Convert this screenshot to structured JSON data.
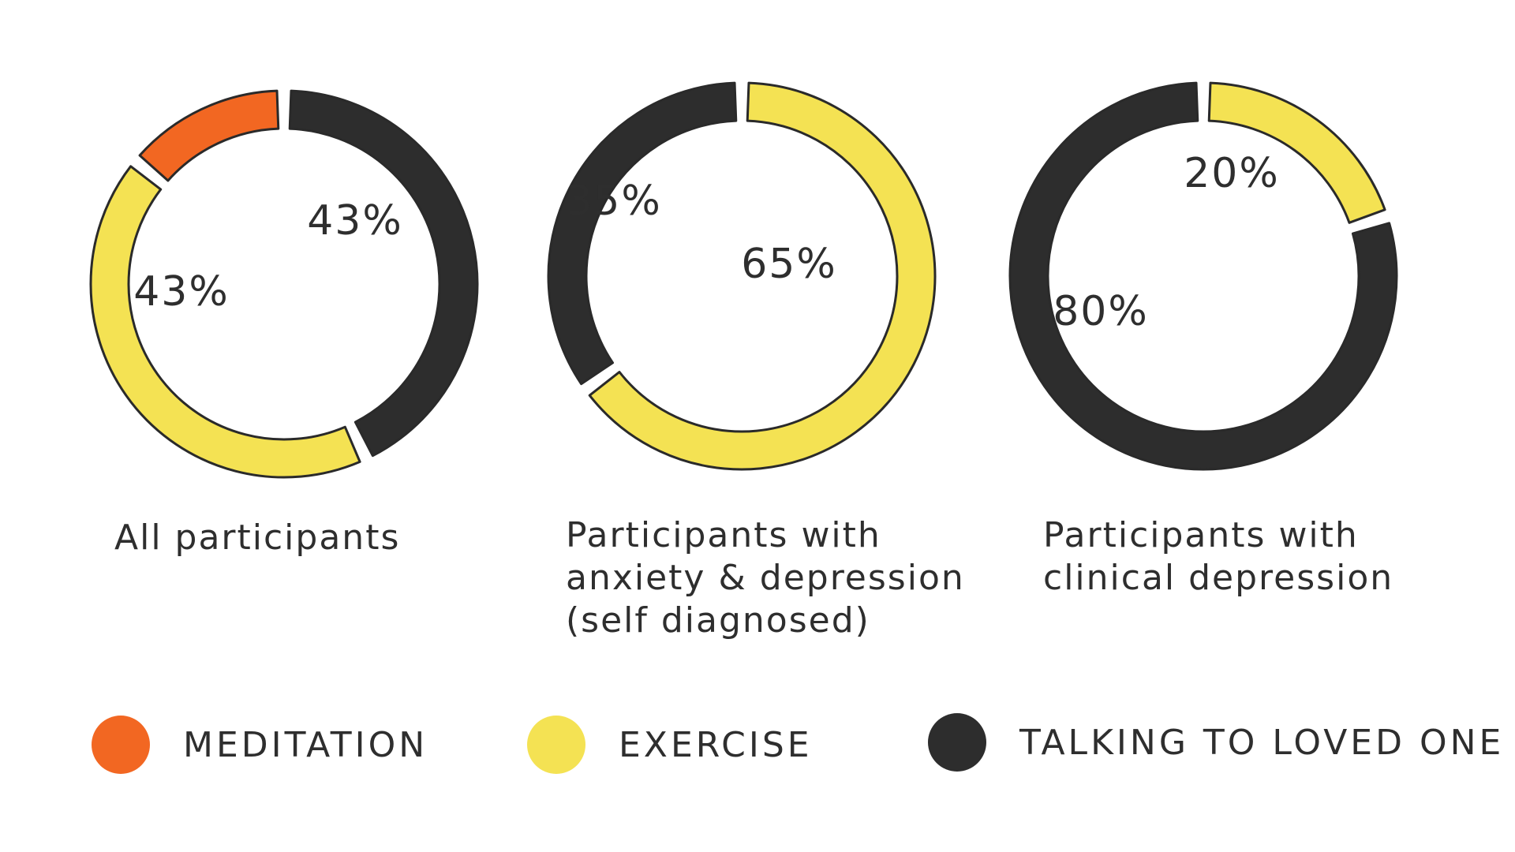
{
  "colors": {
    "meditation": "#F26722",
    "exercise": "#F4E253",
    "talking": "#2D2D2D",
    "outline": "#2A2A2A",
    "text": "#2E2E2E"
  },
  "legend": [
    {
      "key": "meditation",
      "label": "MEDITATION",
      "color": "#F26722"
    },
    {
      "key": "exercise",
      "label": "EXERCISE",
      "color": "#F4E253"
    },
    {
      "key": "talking",
      "label": "TALKING TO LOVED ONE",
      "color": "#2D2D2D"
    }
  ],
  "chart_data": [
    {
      "type": "pie",
      "style": "donut",
      "caption": [
        "All participants"
      ],
      "slices": [
        {
          "name": "TALKING TO LOVED ONE",
          "value": 43,
          "label": "43%",
          "color": "#2D2D2D"
        },
        {
          "name": "EXERCISE",
          "value": 43,
          "label": "43%",
          "color": "#F4E253"
        },
        {
          "name": "MEDITATION",
          "value": 14,
          "label": "",
          "color": "#F26722"
        }
      ]
    },
    {
      "type": "pie",
      "style": "donut",
      "caption": [
        "Participants with",
        "anxiety & depression",
        "(self diagnosed)"
      ],
      "slices": [
        {
          "name": "EXERCISE",
          "value": 65,
          "label": "65%",
          "color": "#F4E253"
        },
        {
          "name": "TALKING TO LOVED ONE",
          "value": 35,
          "label": "35%",
          "color": "#2D2D2D"
        }
      ]
    },
    {
      "type": "pie",
      "style": "donut",
      "caption": [
        "Participants with",
        "clinical depression"
      ],
      "slices": [
        {
          "name": "EXERCISE",
          "value": 20,
          "label": "20%",
          "color": "#F4E253"
        },
        {
          "name": "TALKING TO LOVED ONE",
          "value": 80,
          "label": "80%",
          "color": "#2D2D2D"
        }
      ]
    }
  ]
}
